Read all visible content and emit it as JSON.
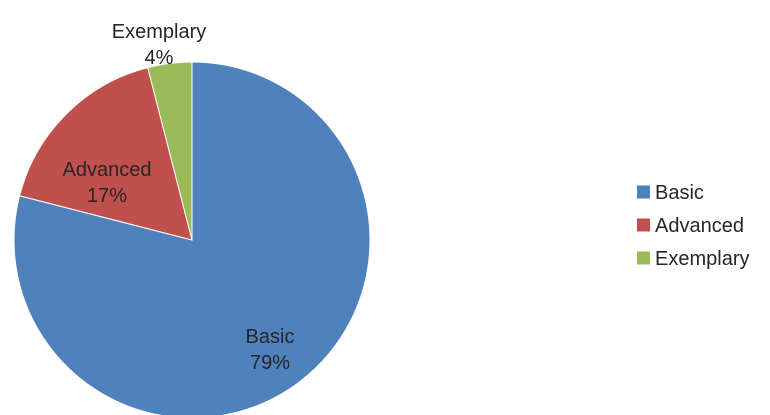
{
  "chart_data": {
    "type": "pie",
    "title": "",
    "categories": [
      "Basic",
      "Advanced",
      "Exemplary"
    ],
    "values": [
      79,
      17,
      4
    ],
    "labels": [
      "79%",
      "17%",
      "4%"
    ],
    "colors": [
      "#4f81bd",
      "#c0504d",
      "#9bbb59"
    ],
    "start_angle_deg": 0,
    "direction": "clockwise",
    "legend": {
      "position": "right",
      "entries": [
        "Basic",
        "Advanced",
        "Exemplary"
      ]
    }
  }
}
